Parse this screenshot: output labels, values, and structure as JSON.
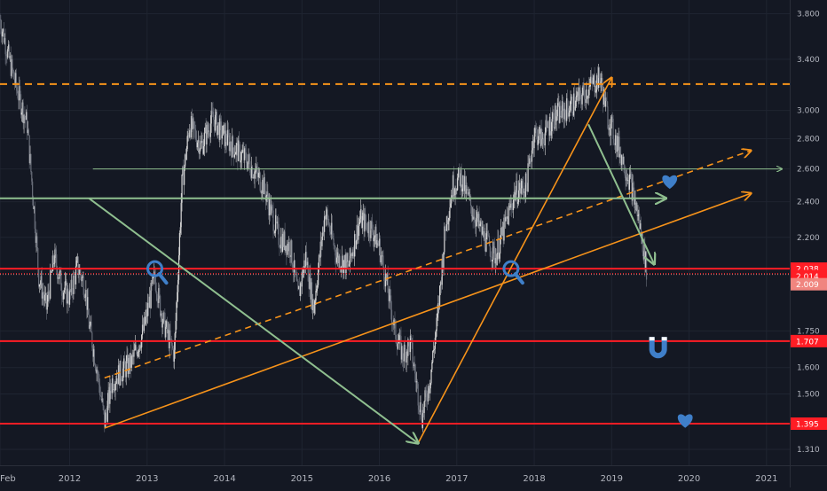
{
  "chart_data": {
    "type": "line",
    "title": "",
    "xlabel": "",
    "ylabel": "",
    "scale": "log",
    "grid": true,
    "ylim": [
      1.26,
      3.93
    ],
    "xlim": [
      2011.1,
      2021.3
    ],
    "colors": {
      "background": "#141823",
      "grid": "#1f2431",
      "axis_text": "#b2b5be",
      "candle_up": "#d7d7d7",
      "candle_down": "#6a6f7b",
      "support": "#ff1d25",
      "trend_orange": "#f7931a",
      "trend_green": "#8fbf8f",
      "icon_blue": "#3f7fc9"
    },
    "x_tick_labels": [
      {
        "label": "Feb",
        "x": 2011.1
      },
      {
        "label": "2012",
        "x": 2012.0
      },
      {
        "label": "2013",
        "x": 2013.0
      },
      {
        "label": "2014",
        "x": 2014.0
      },
      {
        "label": "2015",
        "x": 2015.0
      },
      {
        "label": "2016",
        "x": 2016.0
      },
      {
        "label": "2017",
        "x": 2017.0
      },
      {
        "label": "2018",
        "x": 2018.0
      },
      {
        "label": "2019",
        "x": 2019.0
      },
      {
        "label": "2020",
        "x": 2020.0
      },
      {
        "label": "2021",
        "x": 2021.0
      }
    ],
    "y_tick_labels": [
      "3.800",
      "3.400",
      "3.000",
      "2.800",
      "2.600",
      "2.400",
      "2.200",
      "1.750",
      "1.600",
      "1.500",
      "1.395",
      "1.310"
    ],
    "y_ticks": [
      3.8,
      3.4,
      3.0,
      2.8,
      2.6,
      2.4,
      2.2,
      1.75,
      1.6,
      1.5,
      1.395,
      1.31
    ],
    "price_series": {
      "name": "",
      "x": [
        2011.1,
        2011.2,
        2011.3,
        2011.45,
        2011.55,
        2011.6,
        2011.7,
        2011.8,
        2011.9,
        2012.0,
        2012.1,
        2012.2,
        2012.25,
        2012.35,
        2012.45,
        2012.55,
        2012.65,
        2012.8,
        2012.95,
        2013.1,
        2013.2,
        2013.35,
        2013.45,
        2013.55,
        2013.7,
        2013.85,
        2013.95,
        2014.1,
        2014.3,
        2014.5,
        2014.7,
        2014.85,
        2014.95,
        2015.05,
        2015.15,
        2015.3,
        2015.45,
        2015.6,
        2015.75,
        2015.9,
        2016.0,
        2016.1,
        2016.2,
        2016.3,
        2016.4,
        2016.5,
        2016.55,
        2016.65,
        2016.75,
        2016.85,
        2016.95,
        2017.05,
        2017.2,
        2017.35,
        2017.5,
        2017.65,
        2017.75,
        2017.9,
        2018.0,
        2018.1,
        2018.25,
        2018.4,
        2018.6,
        2018.75,
        2018.85,
        2018.95,
        2019.05,
        2019.15,
        2019.25,
        2019.35,
        2019.45
      ],
      "values": [
        3.75,
        3.45,
        3.2,
        2.9,
        2.3,
        2.0,
        1.85,
        2.1,
        1.95,
        1.9,
        2.05,
        1.95,
        1.78,
        1.6,
        1.4,
        1.55,
        1.58,
        1.62,
        1.75,
        2.0,
        1.8,
        1.65,
        2.5,
        2.9,
        2.75,
        2.95,
        2.85,
        2.75,
        2.65,
        2.5,
        2.2,
        2.15,
        1.9,
        2.1,
        1.85,
        2.35,
        2.1,
        2.05,
        2.3,
        2.25,
        2.15,
        1.95,
        1.75,
        1.65,
        1.7,
        1.5,
        1.42,
        1.55,
        1.8,
        2.25,
        2.5,
        2.55,
        2.35,
        2.2,
        2.1,
        2.3,
        2.45,
        2.5,
        2.85,
        2.8,
        2.95,
        3.0,
        3.1,
        3.2,
        3.25,
        2.95,
        2.8,
        2.65,
        2.5,
        2.3,
        2.04
      ]
    },
    "horizontal_levels": [
      {
        "value": 3.2,
        "style": "dashed",
        "color": "#f7931a"
      },
      {
        "value": 2.6,
        "style": "ray",
        "color": "#8fbf8f"
      },
      {
        "value": 2.038,
        "label": "2.038",
        "color": "#ff1d25"
      },
      {
        "value": 1.707,
        "label": "1.707",
        "color": "#ff1d25"
      },
      {
        "value": 1.395,
        "label": "1.395",
        "color": "#ff1d25"
      }
    ],
    "price_labels": [
      {
        "value": 2.014,
        "label": "2.014",
        "color": "#ff1d25"
      },
      {
        "value": 2.009,
        "label": "2.009",
        "color": "#f0857f"
      }
    ],
    "trend_lines": [
      {
        "from": [
          2012.45,
          1.38
        ],
        "to": [
          2020.8,
          2.45
        ],
        "color": "#f7931a",
        "style": "solid",
        "arrow": true
      },
      {
        "from": [
          2012.45,
          1.56
        ],
        "to": [
          2020.8,
          2.72
        ],
        "color": "#f7931a",
        "style": "dashed",
        "arrow": true
      },
      {
        "from": [
          2016.5,
          1.33
        ],
        "to": [
          2019.0,
          3.25
        ],
        "color": "#f7931a",
        "style": "solid",
        "arrow": true
      },
      {
        "from": [
          2012.25,
          2.42
        ],
        "to": [
          2016.5,
          1.33
        ],
        "color": "#8fbf8f",
        "style": "solid",
        "arrow": true
      },
      {
        "from": [
          2018.7,
          2.9
        ],
        "to": [
          2019.55,
          2.06
        ],
        "color": "#8fbf8f",
        "style": "solid",
        "arrow": true
      },
      {
        "from": [
          2011.1,
          2.42
        ],
        "to": [
          2019.7,
          2.42
        ],
        "color": "#8fbf8f",
        "style": "solid",
        "arrow": true
      }
    ],
    "annotations": [
      {
        "icon": "magnifier-icon",
        "x": 2013.1,
        "y": 2.02
      },
      {
        "icon": "magnifier-icon",
        "x": 2017.7,
        "y": 2.02
      },
      {
        "icon": "heart-icon",
        "x": 2019.75,
        "y": 2.52
      },
      {
        "icon": "magnet-icon",
        "x": 2019.6,
        "y": 1.68
      },
      {
        "icon": "heart-icon",
        "x": 2019.95,
        "y": 1.405
      }
    ]
  }
}
